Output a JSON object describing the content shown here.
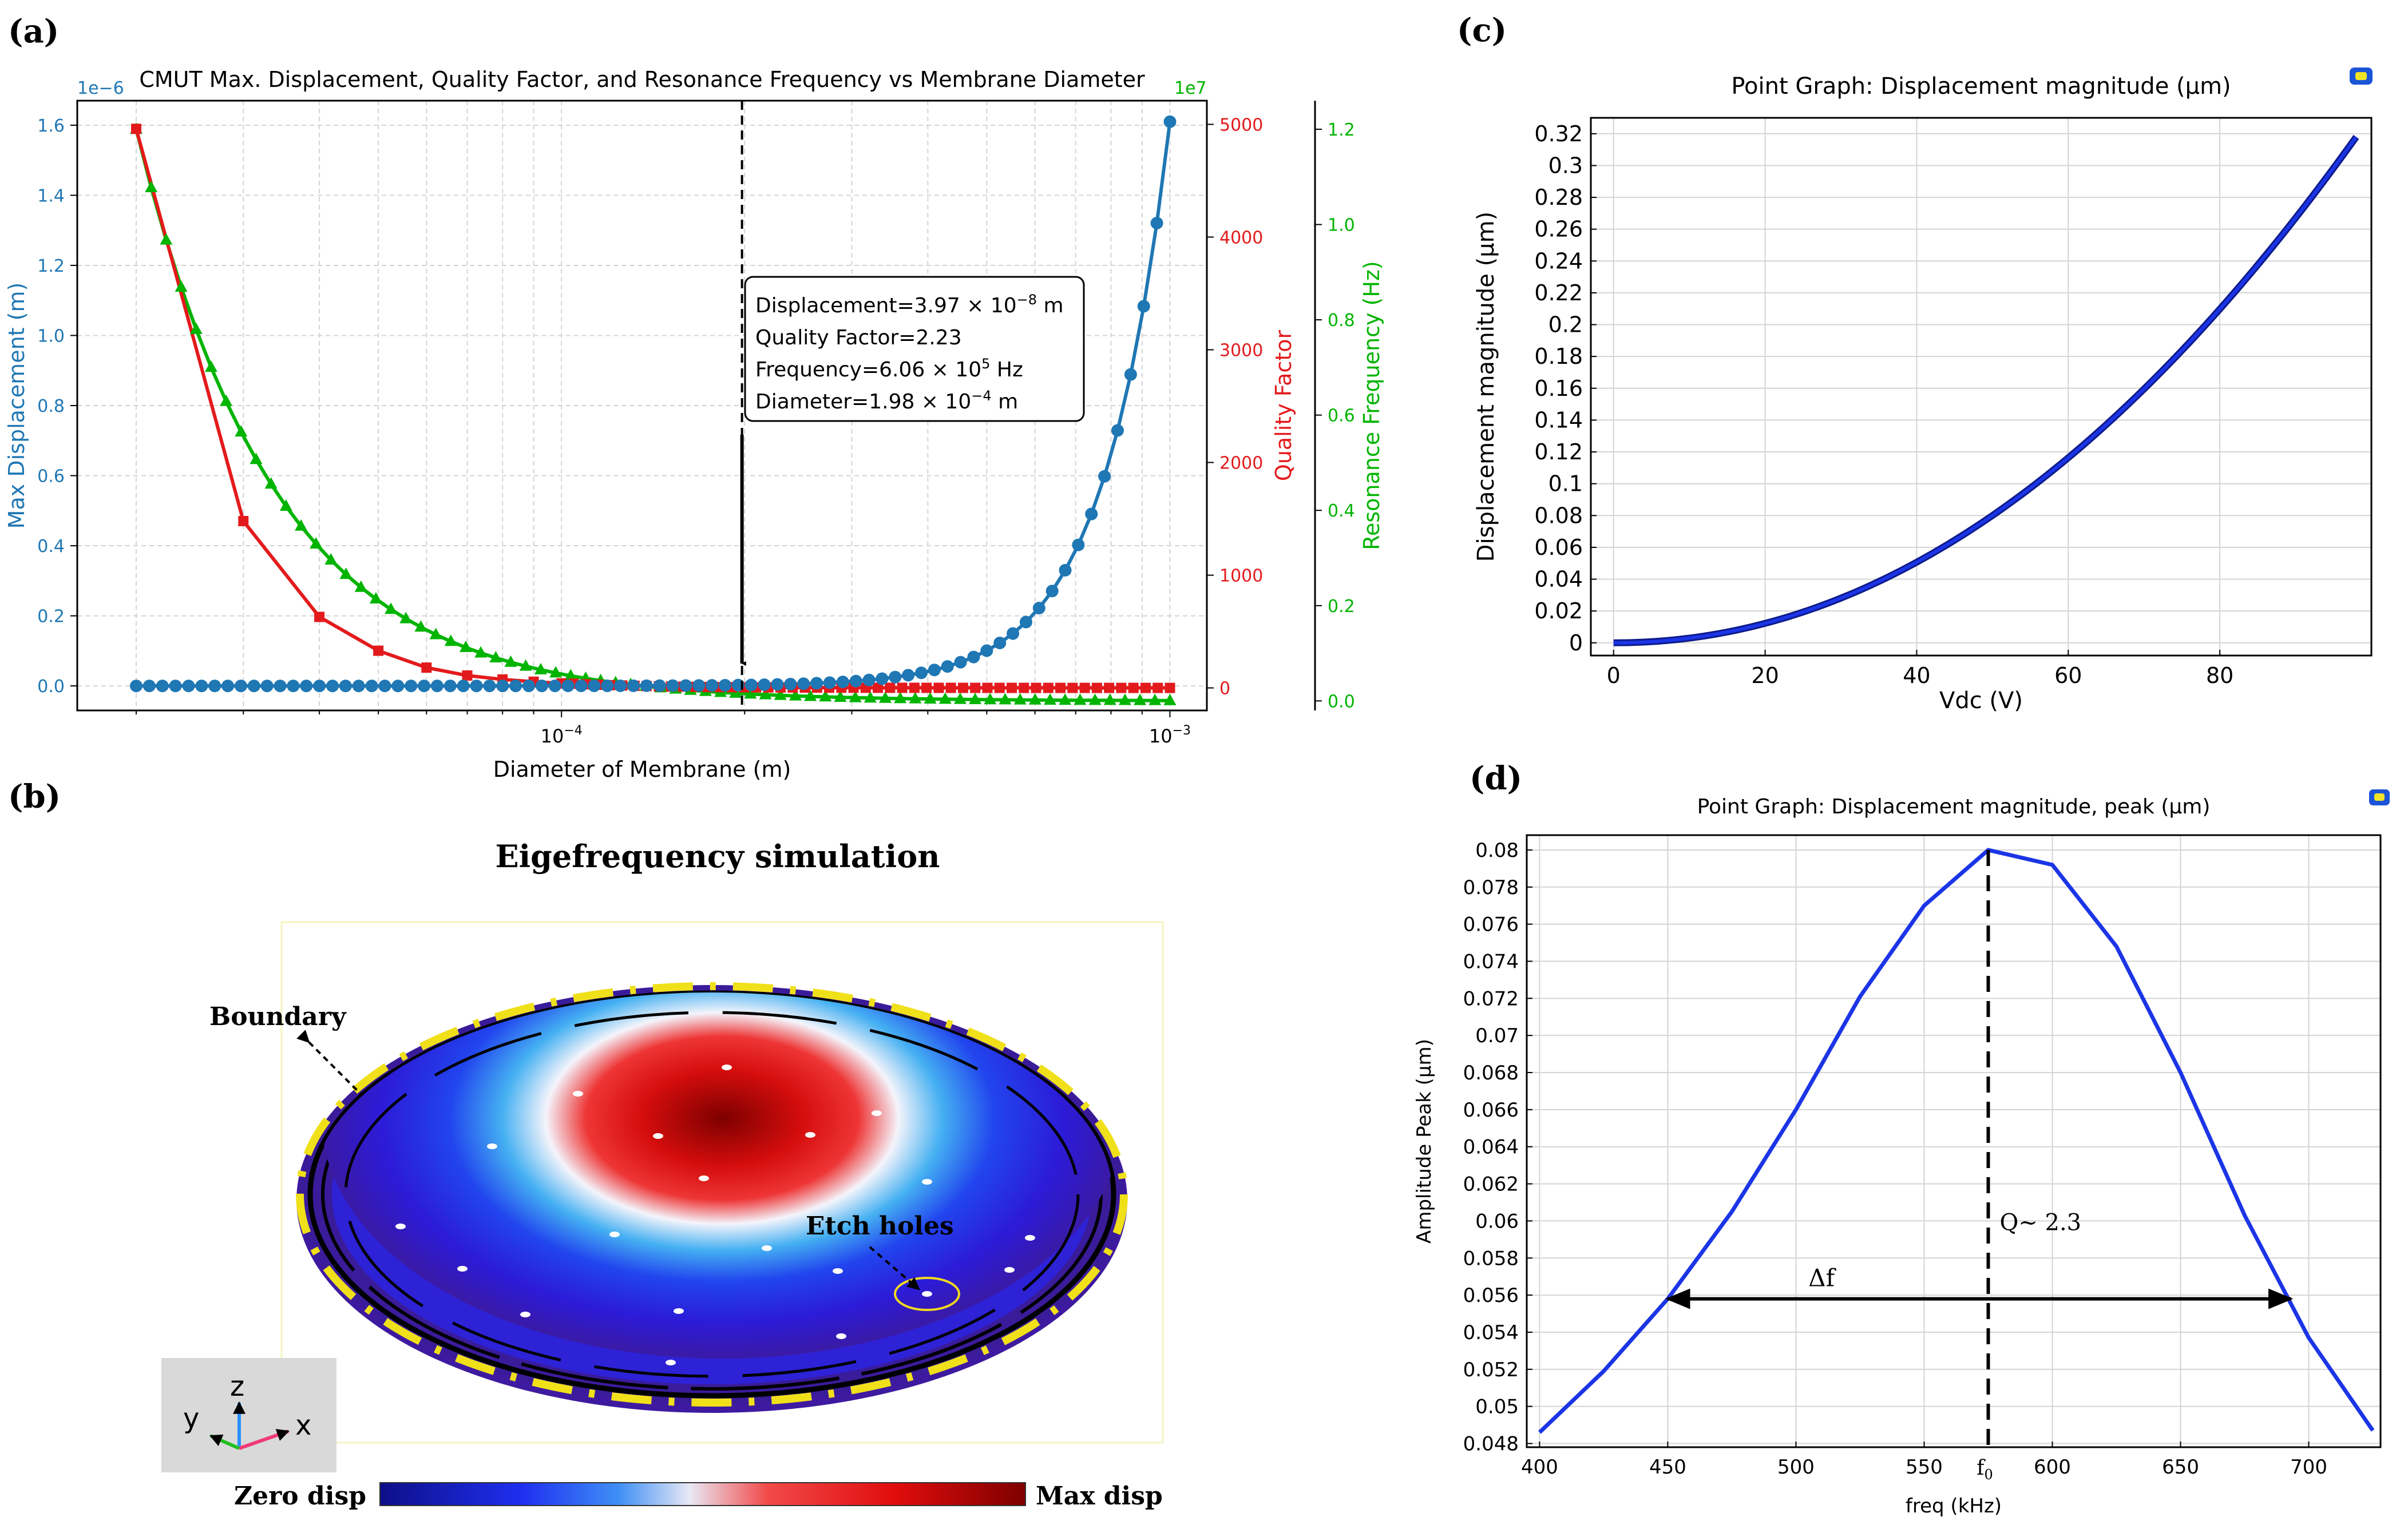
{
  "panel_labels": {
    "a": "(a)",
    "b": "(b)",
    "c": "(c)",
    "d": "(d)"
  },
  "colors": {
    "displacement": "#1f77b4",
    "quality": "#e31a1c",
    "frequency": "#00b400",
    "comsol_curve": "#1b35e6",
    "grid": "#d4d4d4"
  },
  "panel_b": {
    "title": "Eigefrequency simulation",
    "boundary_label": "Boundary",
    "etch_holes_label": "Etch holes",
    "colorbar_min_label": "Zero disp",
    "colorbar_max_label": "Max disp",
    "axes": {
      "z": "z",
      "y": "y",
      "x": "x"
    }
  },
  "chart_data": [
    {
      "id": "a",
      "type": "line",
      "title": "CMUT Max. Displacement, Quality Factor, and Resonance Frequency vs Membrane Diameter",
      "xlabel": "Diameter of Membrane (m)",
      "xscale": "log",
      "xlim": [
        1.6e-05,
        0.00115
      ],
      "x_ticks": [
        {
          "value": 0.0001,
          "base": "10",
          "exp": "−4"
        },
        {
          "value": 0.001,
          "base": "10",
          "exp": "−3"
        }
      ],
      "y_axes": [
        {
          "label": "Max Displacement (m)",
          "offset": "1e−6",
          "ylim": [
            -0.07,
            1.67
          ],
          "ticks": [
            "0.0",
            "0.2",
            "0.4",
            "0.6",
            "0.8",
            "1.0",
            "1.2",
            "1.4",
            "1.6"
          ],
          "tick_values": [
            0,
            0.2,
            0.4,
            0.6,
            0.8,
            1.0,
            1.2,
            1.4,
            1.6
          ]
        },
        {
          "label": "Quality Factor",
          "ylim": [
            -200,
            5210
          ],
          "ticks": [
            "0",
            "1000",
            "2000",
            "3000",
            "4000",
            "5000"
          ],
          "tick_values": [
            0,
            1000,
            2000,
            3000,
            4000,
            5000
          ]
        },
        {
          "label": "Resonance Frequency (Hz)",
          "offset": "1e7",
          "ylim": [
            -0.02,
            1.26
          ],
          "ticks": [
            "0.0",
            "0.2",
            "0.4",
            "0.6",
            "0.8",
            "1.0",
            "1.2"
          ],
          "tick_values": [
            0,
            0.2,
            0.4,
            0.6,
            0.8,
            1.0,
            1.2
          ]
        }
      ],
      "series": [
        {
          "name": "Max Displacement",
          "axis": 0,
          "marker": "circle",
          "scale_note": "y in units of 1e-6 m",
          "x_range": [
            2e-05,
            0.001
          ],
          "count": 80,
          "model": "y = 1.61*(x/1e-3)^4"
        },
        {
          "name": "Quality Factor",
          "axis": 1,
          "marker": "square",
          "x": [
            2e-05,
            3e-05,
            4e-05,
            5e-05,
            6e-05,
            7e-05,
            8e-05,
            9e-05,
            0.0001
          ],
          "values": [
            4960,
            1480,
            630,
            330,
            180,
            110,
            75,
            55,
            40
          ],
          "tail_model": "Q = 4960*(2e-5/x)^2.96 up to 1e-3"
        },
        {
          "name": "Resonance Frequency",
          "axis": 2,
          "marker": "triangle",
          "model": "f = 1.2e7*(2e-5/x)^1.9",
          "x_range": [
            2e-05,
            0.001
          ]
        }
      ],
      "vline_x": 0.000198,
      "annotation": {
        "lines": [
          {
            "text": "Displacement=3.97 × 10",
            "sup": "−8",
            "tail": " m"
          },
          {
            "text": "Quality Factor=2.23",
            "sup": "",
            "tail": ""
          },
          {
            "text": "Frequency=6.06 × 10",
            "sup": "5",
            "tail": " Hz"
          },
          {
            "text": "Diameter=1.98 × 10",
            "sup": "−4",
            "tail": " m"
          }
        ]
      },
      "grid": true
    },
    {
      "id": "c",
      "type": "line",
      "title": "Point Graph: Displacement magnitude (μm)",
      "xlabel": "Vdc (V)",
      "ylabel": "Displacement magnitude (μm)",
      "xlim": [
        -3,
        100
      ],
      "ylim": [
        -0.008,
        0.33
      ],
      "x_ticks": [
        "0",
        "20",
        "40",
        "60",
        "80"
      ],
      "x_tick_values": [
        0,
        20,
        40,
        60,
        80
      ],
      "y_ticks": [
        "0",
        "0.02",
        "0.04",
        "0.06",
        "0.08",
        "0.1",
        "0.12",
        "0.14",
        "0.16",
        "0.18",
        "0.2",
        "0.22",
        "0.24",
        "0.26",
        "0.28",
        "0.3",
        "0.32"
      ],
      "y_tick_values": [
        0,
        0.02,
        0.04,
        0.06,
        0.08,
        0.1,
        0.12,
        0.14,
        0.16,
        0.18,
        0.2,
        0.22,
        0.24,
        0.26,
        0.28,
        0.3,
        0.32
      ],
      "series": [
        {
          "model": "y = 0.318*(V/98)^2.05",
          "x_range": [
            0,
            98
          ]
        }
      ],
      "grid": true
    },
    {
      "id": "d",
      "type": "line",
      "title": "Point Graph: Displacement magnitude, peak (μm)",
      "xlabel": "freq (kHz)",
      "ylabel": "Amplitude Peak (μm)",
      "xlim": [
        395,
        728
      ],
      "ylim": [
        0.0478,
        0.0808
      ],
      "x_ticks": [
        "400",
        "450",
        "500",
        "550",
        "600",
        "650",
        "700"
      ],
      "x_tick_values": [
        400,
        450,
        500,
        550,
        600,
        650,
        700
      ],
      "y_ticks": [
        "0.048",
        "0.05",
        "0.052",
        "0.054",
        "0.056",
        "0.058",
        "0.06",
        "0.062",
        "0.064",
        "0.066",
        "0.068",
        "0.07",
        "0.072",
        "0.074",
        "0.076",
        "0.078",
        "0.08"
      ],
      "y_tick_values": [
        0.048,
        0.05,
        0.052,
        0.054,
        0.056,
        0.058,
        0.06,
        0.062,
        0.064,
        0.066,
        0.068,
        0.07,
        0.072,
        0.074,
        0.076,
        0.078,
        0.08
      ],
      "series": [
        {
          "x": [
            400,
            425,
            450,
            475,
            500,
            525,
            550,
            575,
            600,
            625,
            650,
            675,
            700,
            725
          ],
          "values": [
            0.0486,
            0.0519,
            0.0558,
            0.0605,
            0.066,
            0.0721,
            0.077,
            0.08,
            0.0792,
            0.0748,
            0.068,
            0.0603,
            0.0537,
            0.0487
          ]
        }
      ],
      "peak_label": "Q~ 2.3",
      "peak_x": 575,
      "bandwidth_label": "Δf",
      "bandwidth_x": [
        449,
        694
      ],
      "bandwidth_y": 0.0558,
      "f0_label": "f",
      "f0_sub": "0",
      "grid": true
    }
  ]
}
